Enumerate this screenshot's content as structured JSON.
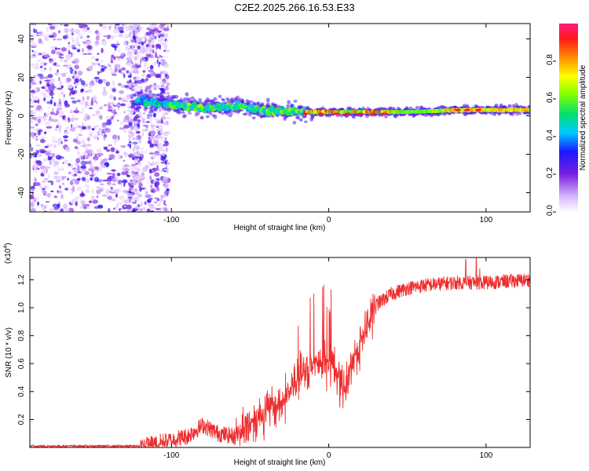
{
  "title": "C2E2.2025.266.16.53.E33",
  "chart_data": [
    {
      "type": "heatmap",
      "name": "spectrogram",
      "xlabel": "Height of straight line (km)",
      "ylabel": "Frequency (Hz)",
      "xlim": [
        -190,
        128
      ],
      "ylim": [
        -50,
        48
      ],
      "xticks": [
        -100,
        0,
        100
      ],
      "yticks": [
        -40,
        -20,
        0,
        20,
        40
      ],
      "colorbar": {
        "label": "Normalized spectral amplitude",
        "range": [
          0,
          1
        ],
        "ticks": [
          "0.0",
          "0.2",
          "0.4",
          "0.6",
          "0.8"
        ],
        "tick_values": [
          0,
          0.2,
          0.4,
          0.6,
          0.8
        ]
      },
      "ridge": {
        "description_points": [
          {
            "x": -120,
            "y": 8
          },
          {
            "x": -100,
            "y": 6
          },
          {
            "x": -80,
            "y": 4
          },
          {
            "x": -60,
            "y": 5
          },
          {
            "x": -40,
            "y": 3
          },
          {
            "x": -20,
            "y": 2
          },
          {
            "x": 0,
            "y": 2
          },
          {
            "x": 20,
            "y": 2
          },
          {
            "x": 50,
            "y": 2
          },
          {
            "x": 80,
            "y": 3
          },
          {
            "x": 100,
            "y": 3
          },
          {
            "x": 128,
            "y": 3
          }
        ]
      }
    },
    {
      "type": "line",
      "name": "snr",
      "xlabel": "Height of straight line (km)",
      "ylabel": "SNR (10 * v/v)",
      "y_multiplier": "(x10",
      "y_multiplier_exp": "4",
      "y_multiplier_close": ")",
      "xlim": [
        -190,
        128
      ],
      "ylim": [
        0,
        1.36
      ],
      "xticks": [
        -100,
        0,
        100
      ],
      "yticks": [
        0.2,
        0.4,
        0.6,
        0.8,
        1.0,
        1.2
      ],
      "ytick_labels": [
        "0.2",
        "0.4",
        "0.6",
        "0.8",
        "1.0",
        "1.2"
      ],
      "color": "#ee2c2c",
      "trend": [
        {
          "x": -190,
          "y": 0.01
        },
        {
          "x": -120,
          "y": 0.01
        },
        {
          "x": -110,
          "y": 0.03
        },
        {
          "x": -90,
          "y": 0.08
        },
        {
          "x": -80,
          "y": 0.16
        },
        {
          "x": -70,
          "y": 0.1
        },
        {
          "x": -60,
          "y": 0.08
        },
        {
          "x": -50,
          "y": 0.18
        },
        {
          "x": -40,
          "y": 0.26
        },
        {
          "x": -30,
          "y": 0.32
        },
        {
          "x": -20,
          "y": 0.48
        },
        {
          "x": -10,
          "y": 0.6
        },
        {
          "x": 0,
          "y": 0.62
        },
        {
          "x": 5,
          "y": 0.55
        },
        {
          "x": 10,
          "y": 0.4
        },
        {
          "x": 15,
          "y": 0.62
        },
        {
          "x": 20,
          "y": 0.74
        },
        {
          "x": 30,
          "y": 1.02
        },
        {
          "x": 40,
          "y": 1.1
        },
        {
          "x": 50,
          "y": 1.14
        },
        {
          "x": 60,
          "y": 1.16
        },
        {
          "x": 80,
          "y": 1.18
        },
        {
          "x": 100,
          "y": 1.18
        },
        {
          "x": 128,
          "y": 1.2
        }
      ]
    }
  ]
}
